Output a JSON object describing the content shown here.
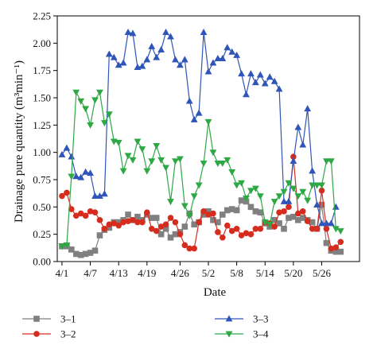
{
  "chart_data": {
    "type": "line",
    "xlabel": "Date",
    "ylabel": "Drainage pure quantity (m³min⁻¹)",
    "ylim": [
      0,
      2.25
    ],
    "y_ticks": [
      "0.00",
      "0.25",
      "0.50",
      "0.75",
      "1.00",
      "1.25",
      "1.50",
      "1.75",
      "2.00",
      "2.25"
    ],
    "x_tick_labels": [
      "4/1",
      "4/7",
      "4/13",
      "4/19",
      "4/26",
      "5/2",
      "5/8",
      "5/14",
      "5/20",
      "5/26"
    ],
    "x_tick_days": [
      0,
      6,
      12,
      18,
      25,
      31,
      37,
      43,
      49,
      55
    ],
    "xlim_days": [
      -1,
      63
    ],
    "grid": false,
    "legend_position": "bottom",
    "series": [
      {
        "name": "3–1",
        "color": "#808080",
        "marker": "square",
        "points": [
          [
            0,
            0.14
          ],
          [
            1,
            0.14
          ],
          [
            2,
            0.11
          ],
          [
            3,
            0.07
          ],
          [
            4,
            0.06
          ],
          [
            5,
            0.07
          ],
          [
            6,
            0.08
          ],
          [
            7,
            0.1
          ],
          [
            8,
            0.24
          ],
          [
            9,
            0.29
          ],
          [
            10,
            0.31
          ],
          [
            11,
            0.36
          ],
          [
            12,
            0.36
          ],
          [
            13,
            0.38
          ],
          [
            14,
            0.43
          ],
          [
            15,
            0.38
          ],
          [
            16,
            0.41
          ],
          [
            17,
            0.38
          ],
          [
            18,
            0.43
          ],
          [
            19,
            0.4
          ],
          [
            20,
            0.4
          ],
          [
            21,
            0.25
          ],
          [
            22,
            0.3
          ],
          [
            23,
            0.22
          ],
          [
            24,
            0.25
          ],
          [
            25,
            0.27
          ],
          [
            26,
            0.32
          ],
          [
            27,
            0.44
          ],
          [
            28,
            0.34
          ],
          [
            29,
            0.36
          ],
          [
            30,
            0.43
          ],
          [
            31,
            0.46
          ],
          [
            32,
            0.38
          ],
          [
            33,
            0.36
          ],
          [
            34,
            0.43
          ],
          [
            35,
            0.47
          ],
          [
            36,
            0.48
          ],
          [
            37,
            0.47
          ],
          [
            38,
            0.56
          ],
          [
            39,
            0.55
          ],
          [
            40,
            0.5
          ],
          [
            41,
            0.46
          ],
          [
            42,
            0.45
          ],
          [
            43,
            0.35
          ],
          [
            44,
            0.32
          ],
          [
            45,
            0.38
          ],
          [
            46,
            0.35
          ],
          [
            47,
            0.3
          ],
          [
            48,
            0.4
          ],
          [
            49,
            0.41
          ],
          [
            50,
            0.38
          ],
          [
            51,
            0.4
          ],
          [
            52,
            0.38
          ],
          [
            53,
            0.36
          ],
          [
            54,
            0.3
          ],
          [
            55,
            0.52
          ],
          [
            56,
            0.17
          ],
          [
            57,
            0.1
          ],
          [
            58,
            0.09
          ],
          [
            59,
            0.09
          ]
        ]
      },
      {
        "name": "3–2",
        "color": "#d62c1e",
        "marker": "circle",
        "points": [
          [
            0,
            0.6
          ],
          [
            1,
            0.63
          ],
          [
            2,
            0.48
          ],
          [
            3,
            0.42
          ],
          [
            4,
            0.44
          ],
          [
            5,
            0.42
          ],
          [
            6,
            0.46
          ],
          [
            7,
            0.45
          ],
          [
            8,
            0.38
          ],
          [
            9,
            0.3
          ],
          [
            10,
            0.34
          ],
          [
            11,
            0.35
          ],
          [
            12,
            0.33
          ],
          [
            13,
            0.36
          ],
          [
            14,
            0.37
          ],
          [
            15,
            0.38
          ],
          [
            16,
            0.36
          ],
          [
            17,
            0.36
          ],
          [
            18,
            0.45
          ],
          [
            19,
            0.3
          ],
          [
            20,
            0.28
          ],
          [
            21,
            0.32
          ],
          [
            22,
            0.34
          ],
          [
            23,
            0.4
          ],
          [
            24,
            0.36
          ],
          [
            25,
            0.25
          ],
          [
            26,
            0.15
          ],
          [
            27,
            0.12
          ],
          [
            28,
            0.12
          ],
          [
            29,
            0.36
          ],
          [
            30,
            0.46
          ],
          [
            31,
            0.43
          ],
          [
            32,
            0.44
          ],
          [
            33,
            0.27
          ],
          [
            34,
            0.22
          ],
          [
            35,
            0.33
          ],
          [
            36,
            0.28
          ],
          [
            37,
            0.3
          ],
          [
            38,
            0.24
          ],
          [
            39,
            0.26
          ],
          [
            40,
            0.25
          ],
          [
            41,
            0.3
          ],
          [
            42,
            0.3
          ],
          [
            43,
            0.36
          ],
          [
            44,
            0.35
          ],
          [
            45,
            0.32
          ],
          [
            46,
            0.45
          ],
          [
            47,
            0.46
          ],
          [
            48,
            0.5
          ],
          [
            49,
            0.96
          ],
          [
            50,
            0.44
          ],
          [
            51,
            0.46
          ],
          [
            52,
            0.37
          ],
          [
            53,
            0.3
          ],
          [
            54,
            0.3
          ],
          [
            55,
            0.65
          ],
          [
            56,
            0.3
          ],
          [
            57,
            0.12
          ],
          [
            58,
            0.13
          ],
          [
            59,
            0.18
          ]
        ]
      },
      {
        "name": "3–3",
        "color": "#2f55b8",
        "marker": "triangle-up",
        "points": [
          [
            0,
            0.98
          ],
          [
            1,
            1.04
          ],
          [
            2,
            0.96
          ],
          [
            3,
            0.78
          ],
          [
            4,
            0.77
          ],
          [
            5,
            0.82
          ],
          [
            6,
            0.81
          ],
          [
            7,
            0.6
          ],
          [
            8,
            0.6
          ],
          [
            9,
            0.62
          ],
          [
            10,
            1.9
          ],
          [
            11,
            1.87
          ],
          [
            12,
            1.8
          ],
          [
            13,
            1.82
          ],
          [
            14,
            2.1
          ],
          [
            15,
            2.09
          ],
          [
            16,
            1.78
          ],
          [
            17,
            1.79
          ],
          [
            18,
            1.85
          ],
          [
            19,
            1.97
          ],
          [
            20,
            1.87
          ],
          [
            21,
            1.94
          ],
          [
            22,
            2.1
          ],
          [
            23,
            2.06
          ],
          [
            24,
            1.85
          ],
          [
            25,
            1.8
          ],
          [
            26,
            1.85
          ],
          [
            27,
            1.47
          ],
          [
            28,
            1.3
          ],
          [
            29,
            1.36
          ],
          [
            30,
            2.1
          ],
          [
            31,
            1.74
          ],
          [
            32,
            1.82
          ],
          [
            33,
            1.86
          ],
          [
            34,
            1.86
          ],
          [
            35,
            1.96
          ],
          [
            36,
            1.92
          ],
          [
            37,
            1.89
          ],
          [
            38,
            1.72
          ],
          [
            39,
            1.53
          ],
          [
            40,
            1.72
          ],
          [
            41,
            1.64
          ],
          [
            42,
            1.71
          ],
          [
            43,
            1.63
          ],
          [
            44,
            1.69
          ],
          [
            45,
            1.65
          ],
          [
            46,
            1.58
          ],
          [
            47,
            0.55
          ],
          [
            48,
            0.55
          ],
          [
            49,
            0.92
          ],
          [
            50,
            1.23
          ],
          [
            51,
            1.07
          ],
          [
            52,
            1.4
          ],
          [
            53,
            0.83
          ],
          [
            54,
            0.52
          ],
          [
            55,
            0.35
          ],
          [
            56,
            0.35
          ],
          [
            57,
            0.35
          ],
          [
            58,
            0.5
          ]
        ]
      },
      {
        "name": "3–4",
        "color": "#2ea845",
        "marker": "triangle-down",
        "points": [
          [
            0,
            0.14
          ],
          [
            1,
            0.15
          ],
          [
            2,
            0.78
          ],
          [
            3,
            1.55
          ],
          [
            4,
            1.47
          ],
          [
            5,
            1.4
          ],
          [
            6,
            1.25
          ],
          [
            7,
            1.48
          ],
          [
            8,
            1.55
          ],
          [
            9,
            1.27
          ],
          [
            10,
            1.35
          ],
          [
            11,
            1.1
          ],
          [
            12,
            1.09
          ],
          [
            13,
            0.83
          ],
          [
            14,
            0.97
          ],
          [
            15,
            0.93
          ],
          [
            16,
            1.1
          ],
          [
            17,
            1.03
          ],
          [
            18,
            0.83
          ],
          [
            19,
            0.92
          ],
          [
            20,
            1.06
          ],
          [
            21,
            0.93
          ],
          [
            22,
            0.86
          ],
          [
            23,
            0.55
          ],
          [
            24,
            0.92
          ],
          [
            25,
            0.94
          ],
          [
            26,
            0.51
          ],
          [
            27,
            0.42
          ],
          [
            28,
            0.6
          ],
          [
            29,
            0.7
          ],
          [
            30,
            0.9
          ],
          [
            31,
            1.28
          ],
          [
            32,
            1.0
          ],
          [
            33,
            0.9
          ],
          [
            34,
            0.9
          ],
          [
            35,
            0.93
          ],
          [
            36,
            0.82
          ],
          [
            37,
            0.7
          ],
          [
            38,
            0.72
          ],
          [
            39,
            0.58
          ],
          [
            40,
            0.65
          ],
          [
            41,
            0.67
          ],
          [
            42,
            0.6
          ],
          [
            43,
            0.36
          ],
          [
            44,
            0.34
          ],
          [
            45,
            0.55
          ],
          [
            46,
            0.6
          ],
          [
            47,
            0.64
          ],
          [
            48,
            0.72
          ],
          [
            49,
            0.67
          ],
          [
            50,
            0.6
          ],
          [
            51,
            0.64
          ],
          [
            52,
            0.56
          ],
          [
            53,
            0.7
          ],
          [
            54,
            0.7
          ],
          [
            55,
            0.7
          ],
          [
            56,
            0.92
          ],
          [
            57,
            0.92
          ],
          [
            58,
            0.3
          ],
          [
            59,
            0.28
          ]
        ]
      }
    ]
  }
}
